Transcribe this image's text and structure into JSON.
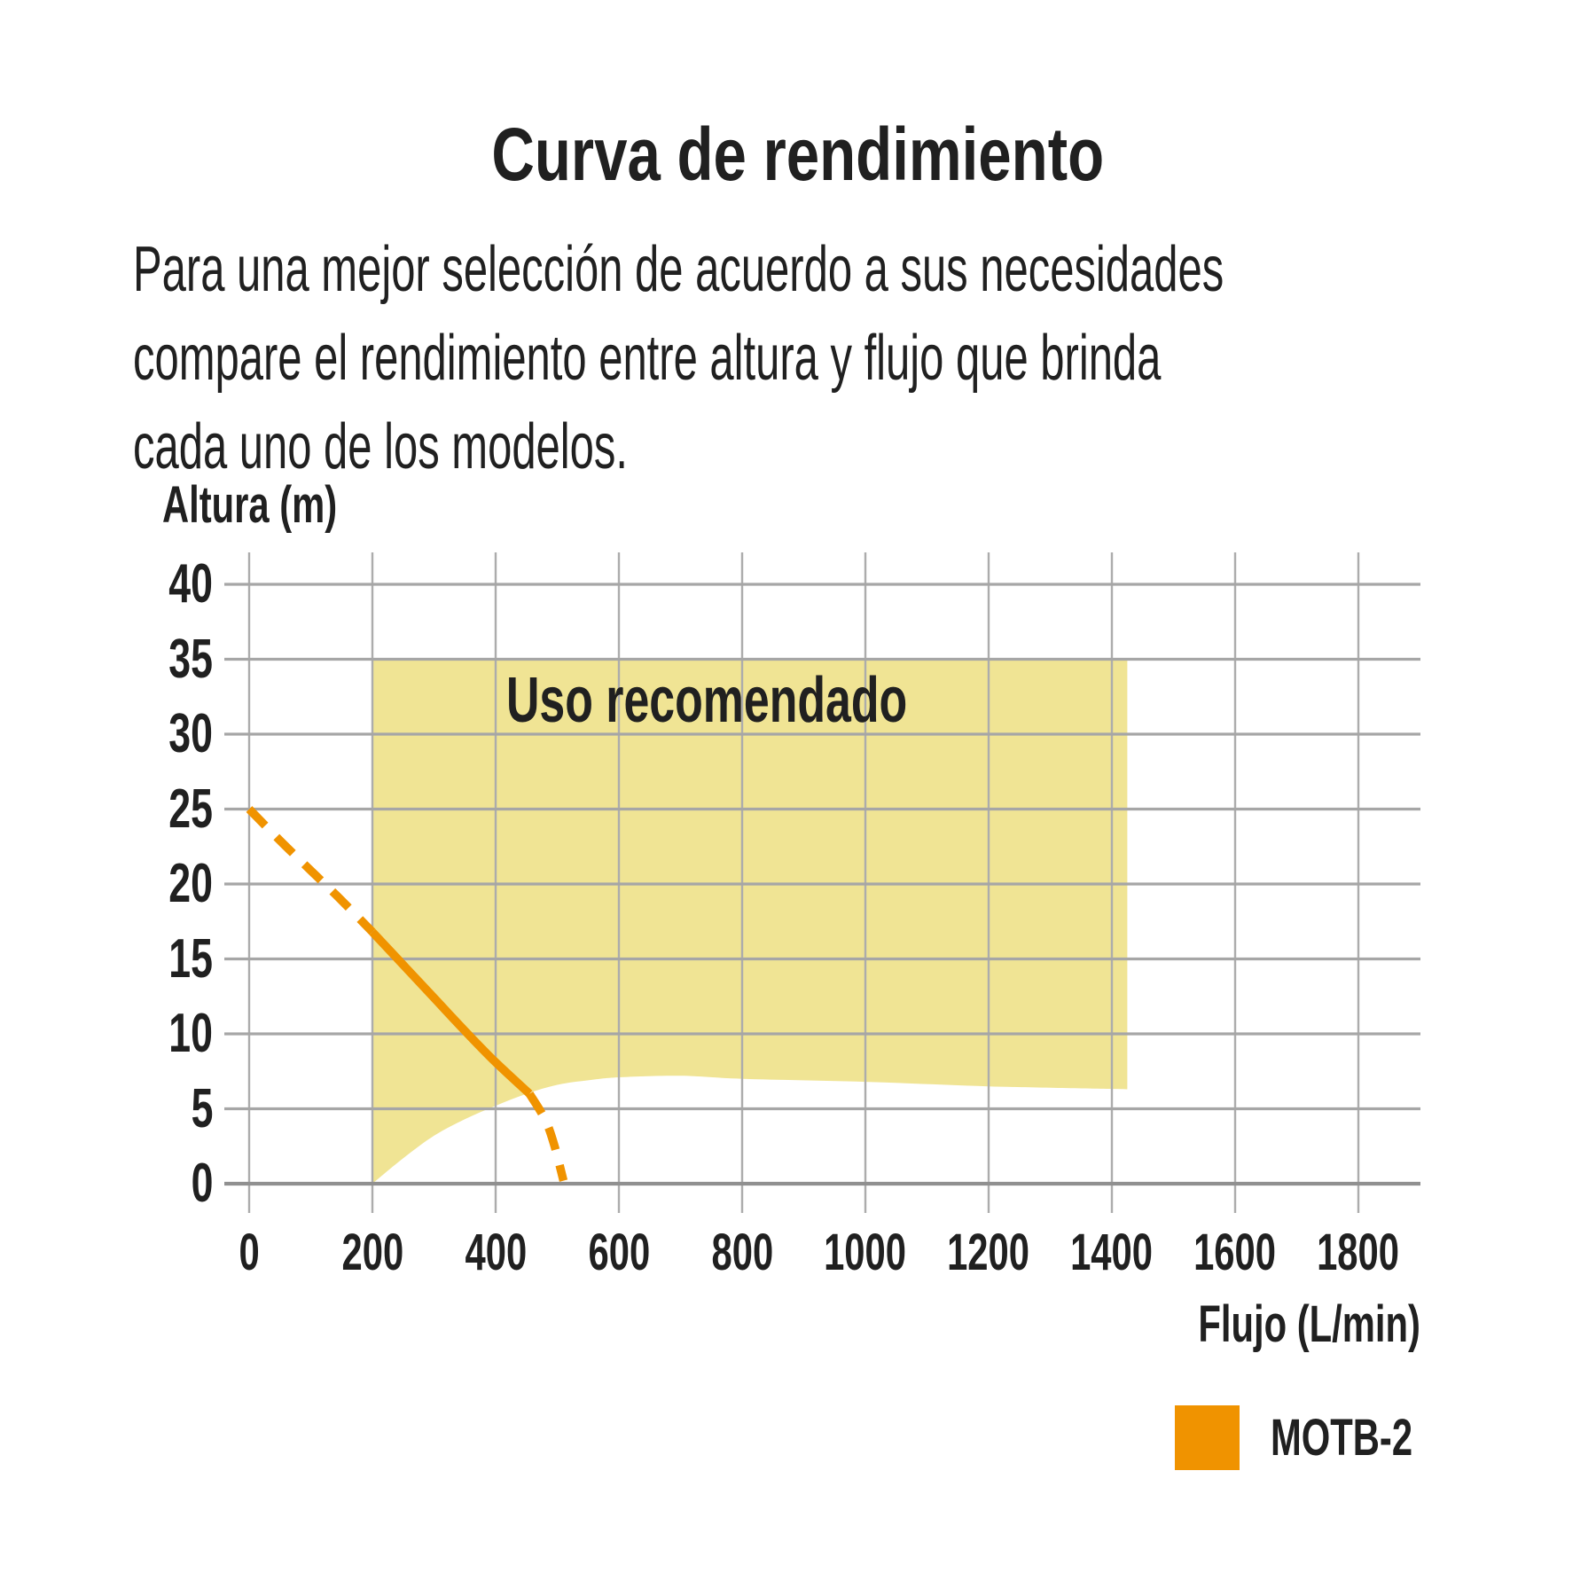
{
  "title": "Curva de rendimiento",
  "description": {
    "lines": [
      "Para una mejor selección de acuerdo a sus necesidades",
      "compare el rendimiento entre altura y flujo que brinda",
      "cada uno de los modelos."
    ]
  },
  "colors": {
    "accent_orange": "#F09300",
    "zone_yellow": "#F0E494",
    "grid_gray": "#A6A6A6",
    "grid_gray_zero": "#909090",
    "text": "#202020"
  },
  "chart_data": {
    "type": "line",
    "title": "Curva de rendimiento",
    "xlabel": "Flujo (L/min)",
    "ylabel": "Altura (m)",
    "xlim": [
      0,
      1800
    ],
    "ylim": [
      0,
      40
    ],
    "grid": true,
    "x_ticks": [
      0,
      200,
      400,
      600,
      800,
      1000,
      1200,
      1400,
      1600,
      1800
    ],
    "y_ticks": [
      0,
      5,
      10,
      15,
      20,
      25,
      30,
      35,
      40
    ],
    "recommended_zone": {
      "label": "Uso recomendado",
      "fill": "#F0E494",
      "x_range": [
        200,
        1425
      ],
      "top_altura": 35,
      "bottom_boundary": [
        [
          200,
          0
        ],
        [
          250,
          1.7
        ],
        [
          300,
          3.2
        ],
        [
          350,
          4.3
        ],
        [
          400,
          5.2
        ],
        [
          450,
          6.0
        ],
        [
          500,
          6.6
        ],
        [
          550,
          6.9
        ],
        [
          600,
          7.1
        ],
        [
          700,
          7.2
        ],
        [
          800,
          7.0
        ],
        [
          1000,
          6.8
        ],
        [
          1200,
          6.5
        ],
        [
          1425,
          6.3
        ]
      ]
    },
    "series": [
      {
        "name": "MOTB-2",
        "color": "#F09300",
        "points": [
          [
            0,
            25
          ],
          [
            50,
            22.9
          ],
          [
            100,
            20.9
          ],
          [
            150,
            18.9
          ],
          [
            200,
            16.8
          ],
          [
            250,
            14.6
          ],
          [
            300,
            12.4
          ],
          [
            350,
            10.2
          ],
          [
            400,
            8.1
          ],
          [
            455,
            6.0
          ],
          [
            480,
            4.3
          ],
          [
            495,
            2.6
          ],
          [
            510,
            0.2
          ]
        ],
        "segments": [
          {
            "style": "dashed",
            "from": 0,
            "to": 200
          },
          {
            "style": "solid",
            "from": 200,
            "to": 455
          },
          {
            "style": "dashed",
            "from": 455,
            "to": 510
          }
        ]
      }
    ],
    "legend": [
      {
        "label": "MOTB-2",
        "color": "#F09300"
      }
    ],
    "legend_position": "bottom-right"
  }
}
